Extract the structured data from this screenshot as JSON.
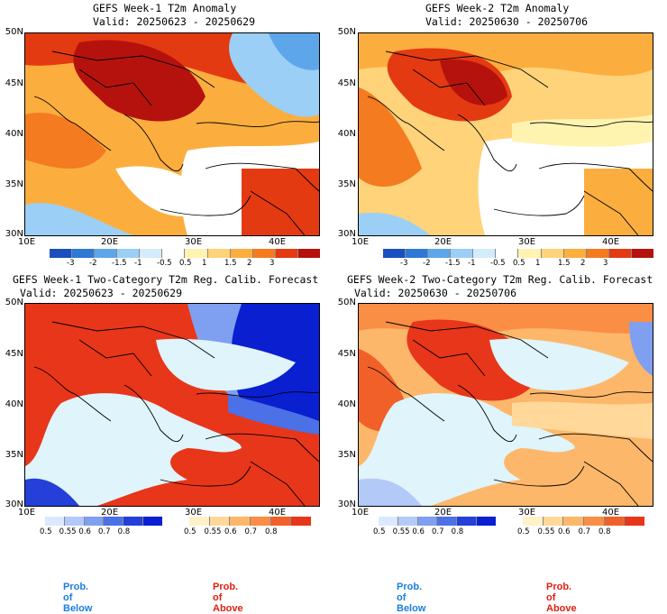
{
  "panels": [
    {
      "title_line1": "GEFS Week-1 T2m Anomaly",
      "title_line2": "Valid: 20250623 - 20250629"
    },
    {
      "title_line1": "GEFS Week-2 T2m Anomaly",
      "title_line2": "Valid: 20250630 - 20250706"
    },
    {
      "title_line1": "GEFS Week-1 Two-Category T2m Reg. Calib. Forecast",
      "title_line2": "Valid: 20250623 - 20250629"
    },
    {
      "title_line1": "GEFS Week-2 Two-Category T2m Reg. Calib. Forecast",
      "title_line2": "Valid: 20250630 - 20250706"
    }
  ],
  "lat_labels": [
    "50N",
    "45N",
    "40N",
    "35N",
    "30N"
  ],
  "lon_labels": [
    "10E",
    "20E",
    "30E",
    "40E"
  ],
  "anomaly_scale": {
    "ticks": [
      "-3",
      "-2",
      "-1.5",
      "-1",
      "-0.5",
      "0.5",
      "1",
      "1.5",
      "2",
      "3"
    ],
    "colors": [
      "#1a4fbd",
      "#2f79d6",
      "#5ea6ea",
      "#9bcff5",
      "#d3ecfb",
      "#ffffff",
      "#fff3b0",
      "#ffd37a",
      "#fbae3e",
      "#f47b1f",
      "#e33a12",
      "#b5120e"
    ]
  },
  "prob_below_scale": {
    "ticks": [
      "0.5",
      "0.55",
      "0.6",
      "0.7",
      "0.8"
    ],
    "colors": [
      "#dbe8ff",
      "#b3c9f8",
      "#7f9ff0",
      "#4c70e6",
      "#2440d9",
      "#0a1fd0"
    ]
  },
  "prob_above_scale": {
    "ticks": [
      "0.5",
      "0.55",
      "0.6",
      "0.7",
      "0.8"
    ],
    "colors": [
      "#fff1c8",
      "#ffd89a",
      "#fdb76a",
      "#fa8e45",
      "#f2602a",
      "#e8361a"
    ]
  },
  "footer": {
    "below_label": "Prob. of Below",
    "above_label": "Prob. of Above"
  },
  "colors": {
    "sea_light": "#dff4fb",
    "below_text": "#1a7fe0",
    "above_text": "#e02010"
  }
}
